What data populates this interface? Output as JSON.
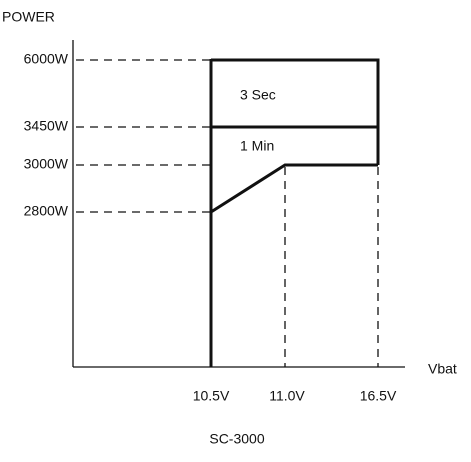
{
  "diagram": {
    "y_axis_label": "POWER",
    "x_axis_label": "Vbat",
    "y_labels": [
      "6000W",
      "3450W",
      "3000W",
      "2800W"
    ],
    "x_labels": [
      "10.5V",
      "11.0V",
      "16.5V"
    ],
    "regions": [
      "3 Sec",
      "1 Min"
    ],
    "caption": "SC-3000"
  }
}
